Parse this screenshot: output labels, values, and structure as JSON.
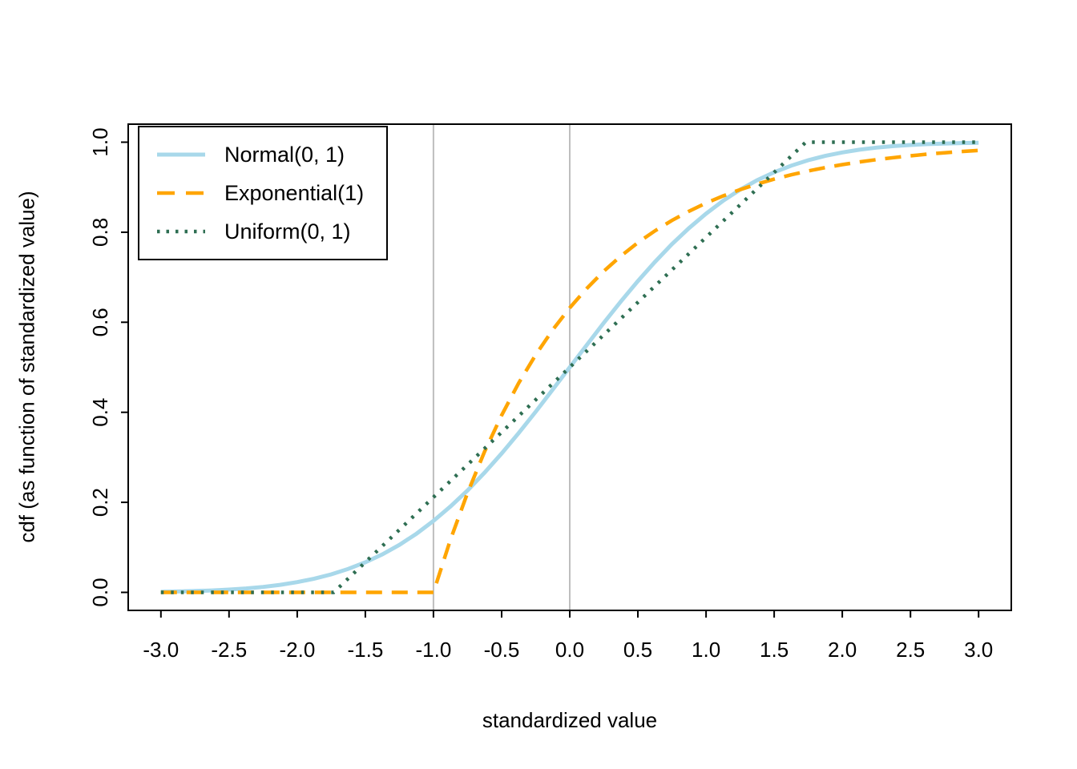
{
  "chart_data": {
    "type": "line",
    "title": "",
    "xlabel": "standardized value",
    "ylabel": "cdf (as function of standardized value)",
    "xlim": [
      -3,
      3
    ],
    "ylim": [
      0,
      1
    ],
    "grid": false,
    "legend_position": "topleft",
    "x_ticks": [
      -3.0,
      -2.5,
      -2.0,
      -1.5,
      -1.0,
      -0.5,
      0.0,
      0.5,
      1.0,
      1.5,
      2.0,
      2.5,
      3.0
    ],
    "x_tick_labels": [
      "-3.0",
      "-2.5",
      "-2.0",
      "-1.5",
      "-1.0",
      "-0.5",
      "0.0",
      "0.5",
      "1.0",
      "1.5",
      "2.0",
      "2.5",
      "3.0"
    ],
    "y_ticks": [
      0.0,
      0.2,
      0.4,
      0.6,
      0.8,
      1.0
    ],
    "y_tick_labels": [
      "0.0",
      "0.2",
      "0.4",
      "0.6",
      "0.8",
      "1.0"
    ],
    "reference_lines": {
      "vertical": [
        -1,
        0
      ],
      "color": "#BEBEBE"
    },
    "series": [
      {
        "name": "Normal(0, 1)",
        "color": "#A8D8EA",
        "style": "solid",
        "x": [
          -3,
          -2.875,
          -2.75,
          -2.625,
          -2.5,
          -2.375,
          -2.25,
          -2.125,
          -2,
          -1.875,
          -1.75,
          -1.625,
          -1.5,
          -1.375,
          -1.25,
          -1.125,
          -1,
          -0.875,
          -0.75,
          -0.625,
          -0.5,
          -0.375,
          -0.25,
          -0.125,
          0,
          0.125,
          0.25,
          0.375,
          0.5,
          0.625,
          0.75,
          0.875,
          1,
          1.125,
          1.25,
          1.375,
          1.5,
          1.625,
          1.75,
          1.875,
          2,
          2.125,
          2.25,
          2.375,
          2.5,
          2.625,
          2.75,
          2.875,
          3
        ],
        "y": [
          0.0013,
          0.002,
          0.003,
          0.0043,
          0.0062,
          0.0088,
          0.0122,
          0.0168,
          0.0228,
          0.0304,
          0.0401,
          0.0521,
          0.0668,
          0.0846,
          0.1056,
          0.1303,
          0.1587,
          0.1909,
          0.2266,
          0.266,
          0.3085,
          0.3538,
          0.4013,
          0.4503,
          0.5,
          0.5497,
          0.5987,
          0.6462,
          0.6915,
          0.734,
          0.7734,
          0.8091,
          0.8413,
          0.8697,
          0.8944,
          0.9154,
          0.9332,
          0.9479,
          0.9599,
          0.9696,
          0.9772,
          0.9832,
          0.9878,
          0.9912,
          0.9938,
          0.9957,
          0.997,
          0.998,
          0.9987
        ]
      },
      {
        "name": "Exponential(1)",
        "color": "#FFA500",
        "style": "dashed",
        "x": [
          -3,
          -1,
          -0.875,
          -0.75,
          -0.625,
          -0.5,
          -0.375,
          -0.25,
          -0.125,
          0,
          0.125,
          0.25,
          0.375,
          0.5,
          0.625,
          0.75,
          0.875,
          1,
          1.125,
          1.25,
          1.375,
          1.5,
          1.625,
          1.75,
          1.875,
          2,
          2.125,
          2.25,
          2.375,
          2.5,
          2.625,
          2.75,
          2.875,
          3
        ],
        "y": [
          0,
          0,
          0.1175,
          0.2212,
          0.3127,
          0.3935,
          0.4647,
          0.5276,
          0.5831,
          0.6321,
          0.6753,
          0.7135,
          0.7471,
          0.7769,
          0.803,
          0.8262,
          0.8466,
          0.8647,
          0.8806,
          0.8946,
          0.907,
          0.9179,
          0.9276,
          0.9361,
          0.9436,
          0.9502,
          0.9561,
          0.9612,
          0.9657,
          0.9698,
          0.9734,
          0.9765,
          0.9793,
          0.9817
        ]
      },
      {
        "name": "Uniform(0, 1)",
        "color": "#2E6E52",
        "style": "dotted",
        "x": [
          -3,
          -1.7321,
          1.7321,
          3
        ],
        "y": [
          0,
          0,
          1,
          1
        ]
      }
    ]
  }
}
